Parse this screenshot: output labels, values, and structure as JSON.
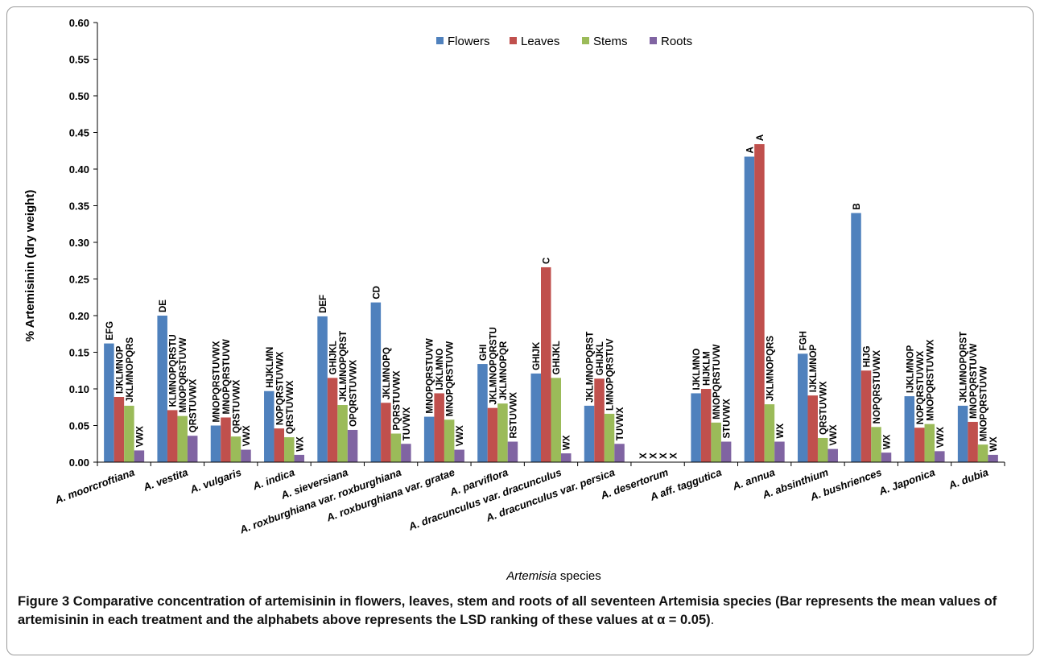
{
  "chart_data": {
    "type": "bar",
    "title": "",
    "xlabel_italic": "Artemisia",
    "xlabel_rest": " species",
    "ylabel": "% Artemisinin (dry weight)",
    "ylim": [
      0,
      0.6
    ],
    "yticks": [
      "0.00",
      "0.05",
      "0.10",
      "0.15",
      "0.20",
      "0.25",
      "0.30",
      "0.35",
      "0.40",
      "0.45",
      "0.50",
      "0.55",
      "0.60"
    ],
    "legend_position": "top-center",
    "grid": false,
    "categories": [
      "A. moorcroftiana",
      "A. vestita",
      "A. vulgaris",
      "A. indica",
      "A. sieversiana",
      "A. roxburghiana var. roxburghiana",
      "A. roxburghiana var. gratae",
      "A. parviflora",
      "A. dracunculus var. dracunculus",
      "A. dracunculus var. persica",
      "A. desertorum",
      "A aff. taggutica",
      "A. annua",
      "A. absinthium",
      "A. bushriences",
      "A. Japonica",
      "A. dubia"
    ],
    "series": [
      {
        "name": "Flowers",
        "color": "#4f81bd",
        "values": [
          0.162,
          0.2,
          0.05,
          0.097,
          0.199,
          0.218,
          0.062,
          0.134,
          0.121,
          0.077,
          0,
          0.094,
          0.417,
          0.148,
          0.34,
          0.09,
          0.077
        ],
        "labels": [
          "EFG",
          "DE",
          "MNOPQRSTUVWX",
          "HIJKLMN",
          "DEF",
          "CD",
          "MNOPQRSTUVW",
          "GHI",
          "GHIJK",
          "JKLMNOPQRST",
          "X",
          "IJKLMNO",
          "A",
          "FGH",
          "B",
          "IJKLMNOP",
          "JKLMNOPQRST"
        ]
      },
      {
        "name": "Leaves",
        "color": "#c0504d",
        "values": [
          0.089,
          0.071,
          0.061,
          0.046,
          0.115,
          0.081,
          0.094,
          0.074,
          0.266,
          0.114,
          0,
          0.1,
          0.434,
          0.091,
          0.125,
          0.047,
          0.055
        ],
        "labels": [
          "IJKLMNOP",
          "KLMNOPQRSTU",
          "MNOPQRSTUVW",
          "NOPQRSTUVWX",
          "GHIJKL",
          "JKLMNOPQ",
          "IJKLMNO",
          "JKLMNOPQRSTU",
          "C",
          "GHIJKL",
          "X",
          "HIJKLM",
          "A",
          "IJKLMNOP",
          "HIJG",
          "NOPQRSTUVWX",
          "MNOPQRSTUVW"
        ]
      },
      {
        "name": "Stems",
        "color": "#9bbb59",
        "values": [
          0.077,
          0.063,
          0.035,
          0.034,
          0.078,
          0.039,
          0.058,
          0.08,
          0.115,
          0.066,
          0,
          0.054,
          0.079,
          0.033,
          0.048,
          0.052,
          0.024
        ],
        "labels": [
          "JKLMNOPQRS",
          "MNOPQRSTUVW",
          "QRSTUVWX",
          "QRSTUVWX",
          "JKLMNOPQRST",
          "PQRSTUVWX",
          "MNOPQRSTUVW",
          "JKLMNOPQR",
          "GHIJKL",
          "LMNOPQRSTUV",
          "X",
          "MNOPQRSTUVW",
          "JKLMNOPQRS",
          "QRSTUVWX",
          "NOPQRSTUVWX",
          "MNOPQRSTUVWX",
          "MNOPQRSTUVW"
        ]
      },
      {
        "name": "Roots",
        "color": "#8064a2",
        "values": [
          0.016,
          0.036,
          0.017,
          0.01,
          0.044,
          0.025,
          0.017,
          0.028,
          0.012,
          0.025,
          0,
          0.028,
          0.028,
          0.018,
          0.013,
          0.015,
          0.01
        ],
        "labels": [
          "VWX",
          "QRSTUVWX",
          "VWX",
          "WX",
          "OPQRSTUVWX",
          "TUVWX",
          "VWX",
          "RSTUVWX",
          "WX",
          "TUVWX",
          "X",
          "STUVWX",
          "WX",
          "VWX",
          "WX",
          "VWX",
          "WX"
        ]
      }
    ]
  },
  "caption": {
    "lead": "Figure 3",
    "text": " Comparative concentration of artemisinin in flowers, leaves, stem and roots of all seventeen Artemisia species (Bar represents the mean values of artemisinin in each treatment and the alphabets above represents the LSD ranking of these values at α = 0.05)",
    "tail": "."
  }
}
